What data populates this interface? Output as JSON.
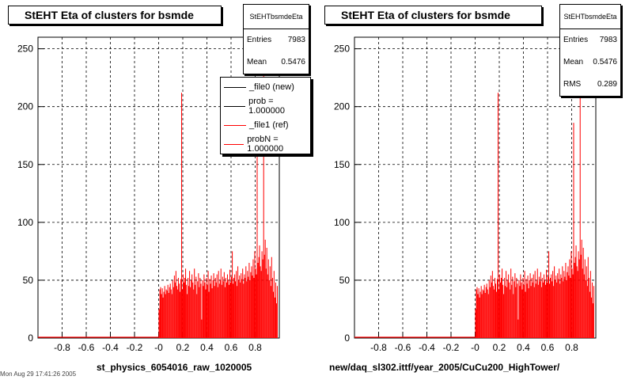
{
  "panels": [
    {
      "title": "StEHT Eta of clusters for bsmde",
      "stats": {
        "name": "StEHTbsmdeEta",
        "rows": [
          {
            "label": "Entries",
            "value": "7983"
          },
          {
            "label": "Mean",
            "value": "0.5476"
          }
        ]
      },
      "legend": [
        {
          "label": "_file0 (new)",
          "color": "#000000"
        },
        {
          "label": "prob = 1.000000",
          "color": "#000000"
        },
        {
          "label": "_file1 (ref)",
          "color": "#ff0000"
        },
        {
          "label": "probN = 1.000000",
          "color": "#ff0000"
        }
      ],
      "xlabel": "st_physics_6054016_raw_1020005"
    },
    {
      "title": "StEHT Eta of clusters for bsmde",
      "stats": {
        "name": "StEHTbsmdeEta",
        "rows": [
          {
            "label": "Entries",
            "value": "7983"
          },
          {
            "label": "Mean",
            "value": "0.5476"
          },
          {
            "label": "RMS",
            "value": "0.289"
          }
        ]
      },
      "legend": [],
      "xlabel": "new/daq_sl302.ittf/year_2005/CuCu200_HighTower/"
    }
  ],
  "footer": "Mon Aug 29 17:41:26 2005",
  "chart_data": {
    "type": "bar",
    "x_range": [
      -1.0,
      1.0
    ],
    "ylim": [
      0,
      260
    ],
    "grid": true,
    "x_ticks": [
      -0.8,
      -0.6,
      -0.4,
      -0.2,
      0,
      0.2,
      0.4,
      0.6,
      0.8
    ],
    "x_tick_labels": [
      "-0.8",
      "-0.6",
      "-0.4",
      "-0.2",
      "-0",
      "0.2",
      "0.4",
      "0.6",
      "0.8"
    ],
    "y_ticks": [
      0,
      50,
      100,
      150,
      200,
      250
    ],
    "y_tick_labels": [
      "0",
      "50",
      "100",
      "150",
      "200",
      "250"
    ],
    "color": "#ff0000",
    "bin_width": 0.00667,
    "bins": [
      [
        -0.0,
        25
      ],
      [
        0.007,
        42
      ],
      [
        0.013,
        44
      ],
      [
        0.02,
        38
      ],
      [
        0.027,
        43
      ],
      [
        0.033,
        35
      ],
      [
        0.04,
        40
      ],
      [
        0.047,
        45
      ],
      [
        0.053,
        38
      ],
      [
        0.06,
        42
      ],
      [
        0.067,
        41
      ],
      [
        0.073,
        46
      ],
      [
        0.08,
        39
      ],
      [
        0.087,
        44
      ],
      [
        0.093,
        47
      ],
      [
        0.1,
        42
      ],
      [
        0.107,
        38
      ],
      [
        0.113,
        50
      ],
      [
        0.12,
        44
      ],
      [
        0.127,
        54
      ],
      [
        0.133,
        48
      ],
      [
        0.14,
        58
      ],
      [
        0.147,
        45
      ],
      [
        0.153,
        42
      ],
      [
        0.16,
        52
      ],
      [
        0.167,
        47
      ],
      [
        0.173,
        40
      ],
      [
        0.18,
        51
      ],
      [
        0.187,
        212
      ],
      [
        0.193,
        42
      ],
      [
        0.2,
        55
      ],
      [
        0.207,
        48
      ],
      [
        0.213,
        52
      ],
      [
        0.22,
        60
      ],
      [
        0.227,
        46
      ],
      [
        0.233,
        38
      ],
      [
        0.24,
        52
      ],
      [
        0.247,
        45
      ],
      [
        0.253,
        58
      ],
      [
        0.26,
        44
      ],
      [
        0.267,
        50
      ],
      [
        0.273,
        55
      ],
      [
        0.28,
        48
      ],
      [
        0.287,
        42
      ],
      [
        0.293,
        60
      ],
      [
        0.3,
        46
      ],
      [
        0.307,
        53
      ],
      [
        0.313,
        38
      ],
      [
        0.32,
        49
      ],
      [
        0.327,
        56
      ],
      [
        0.333,
        44
      ],
      [
        0.34,
        52
      ],
      [
        0.347,
        47
      ],
      [
        0.353,
        16
      ],
      [
        0.36,
        50
      ],
      [
        0.367,
        45
      ],
      [
        0.373,
        55
      ],
      [
        0.38,
        48
      ],
      [
        0.387,
        42
      ],
      [
        0.393,
        52
      ],
      [
        0.4,
        46
      ],
      [
        0.407,
        58
      ],
      [
        0.413,
        40
      ],
      [
        0.42,
        51
      ],
      [
        0.427,
        47
      ],
      [
        0.433,
        54
      ],
      [
        0.44,
        43
      ],
      [
        0.447,
        50
      ],
      [
        0.453,
        56
      ],
      [
        0.46,
        45
      ],
      [
        0.467,
        52
      ],
      [
        0.473,
        48
      ],
      [
        0.48,
        55
      ],
      [
        0.487,
        44
      ],
      [
        0.493,
        58
      ],
      [
        0.5,
        47
      ],
      [
        0.507,
        50
      ],
      [
        0.513,
        60
      ],
      [
        0.52,
        46
      ],
      [
        0.527,
        53
      ],
      [
        0.533,
        49
      ],
      [
        0.54,
        57
      ],
      [
        0.547,
        44
      ],
      [
        0.553,
        52
      ],
      [
        0.56,
        48
      ],
      [
        0.567,
        55
      ],
      [
        0.573,
        50
      ],
      [
        0.58,
        46
      ],
      [
        0.587,
        59
      ],
      [
        0.593,
        48
      ],
      [
        0.6,
        53
      ],
      [
        0.607,
        75
      ],
      [
        0.613,
        47
      ],
      [
        0.62,
        52
      ],
      [
        0.627,
        55
      ],
      [
        0.633,
        49
      ],
      [
        0.64,
        58
      ],
      [
        0.647,
        45
      ],
      [
        0.653,
        62
      ],
      [
        0.66,
        50
      ],
      [
        0.667,
        54
      ],
      [
        0.673,
        48
      ],
      [
        0.68,
        56
      ],
      [
        0.687,
        51
      ],
      [
        0.693,
        60
      ],
      [
        0.7,
        47
      ],
      [
        0.707,
        55
      ],
      [
        0.713,
        52
      ],
      [
        0.72,
        62
      ],
      [
        0.727,
        49
      ],
      [
        0.733,
        58
      ],
      [
        0.74,
        53
      ],
      [
        0.747,
        65
      ],
      [
        0.753,
        50
      ],
      [
        0.76,
        57
      ],
      [
        0.767,
        62
      ],
      [
        0.773,
        54
      ],
      [
        0.78,
        68
      ],
      [
        0.787,
        52
      ],
      [
        0.793,
        75
      ],
      [
        0.8,
        60
      ],
      [
        0.807,
        55
      ],
      [
        0.813,
        186
      ],
      [
        0.82,
        65
      ],
      [
        0.827,
        70
      ],
      [
        0.833,
        80
      ],
      [
        0.84,
        62
      ],
      [
        0.847,
        58
      ],
      [
        0.853,
        75
      ],
      [
        0.86,
        68
      ],
      [
        0.867,
        246
      ],
      [
        0.873,
        72
      ],
      [
        0.88,
        85
      ],
      [
        0.887,
        60
      ],
      [
        0.893,
        78
      ],
      [
        0.9,
        55
      ],
      [
        0.907,
        68
      ],
      [
        0.913,
        50
      ],
      [
        0.92,
        62
      ],
      [
        0.927,
        45
      ],
      [
        0.933,
        70
      ],
      [
        0.94,
        52
      ],
      [
        0.947,
        40
      ],
      [
        0.953,
        58
      ],
      [
        0.96,
        35
      ],
      [
        0.967,
        48
      ],
      [
        0.973,
        30
      ],
      [
        0.98,
        45
      ]
    ]
  }
}
